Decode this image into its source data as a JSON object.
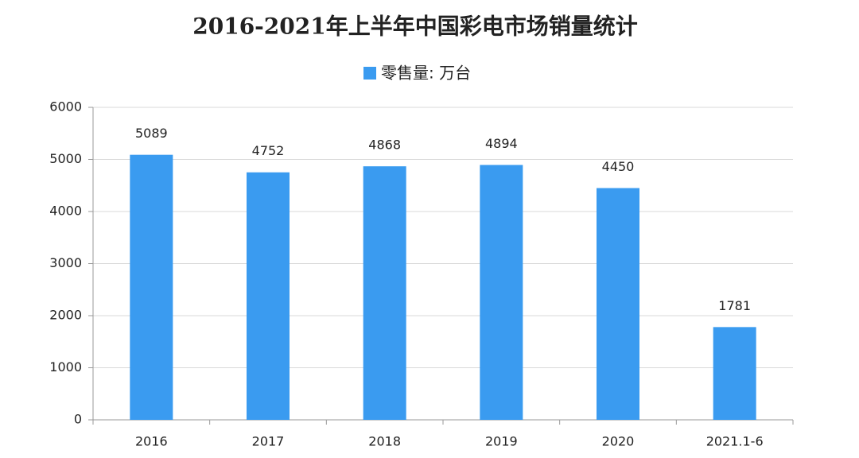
{
  "chart_data": {
    "type": "bar",
    "title": "2016-2021年上半年中国彩电市场销量统计",
    "categories": [
      "2016",
      "2017",
      "2018",
      "2019",
      "2020",
      "2021.1-6"
    ],
    "series": [
      {
        "name": "零售量: 万台",
        "color": "#3a9bf0",
        "values": [
          5089,
          4752,
          4868,
          4894,
          4450,
          1781
        ]
      }
    ],
    "ylim": [
      0,
      6000
    ],
    "yticks": [
      0,
      1000,
      2000,
      3000,
      4000,
      5000,
      6000
    ],
    "grid": true,
    "legend": "top"
  }
}
